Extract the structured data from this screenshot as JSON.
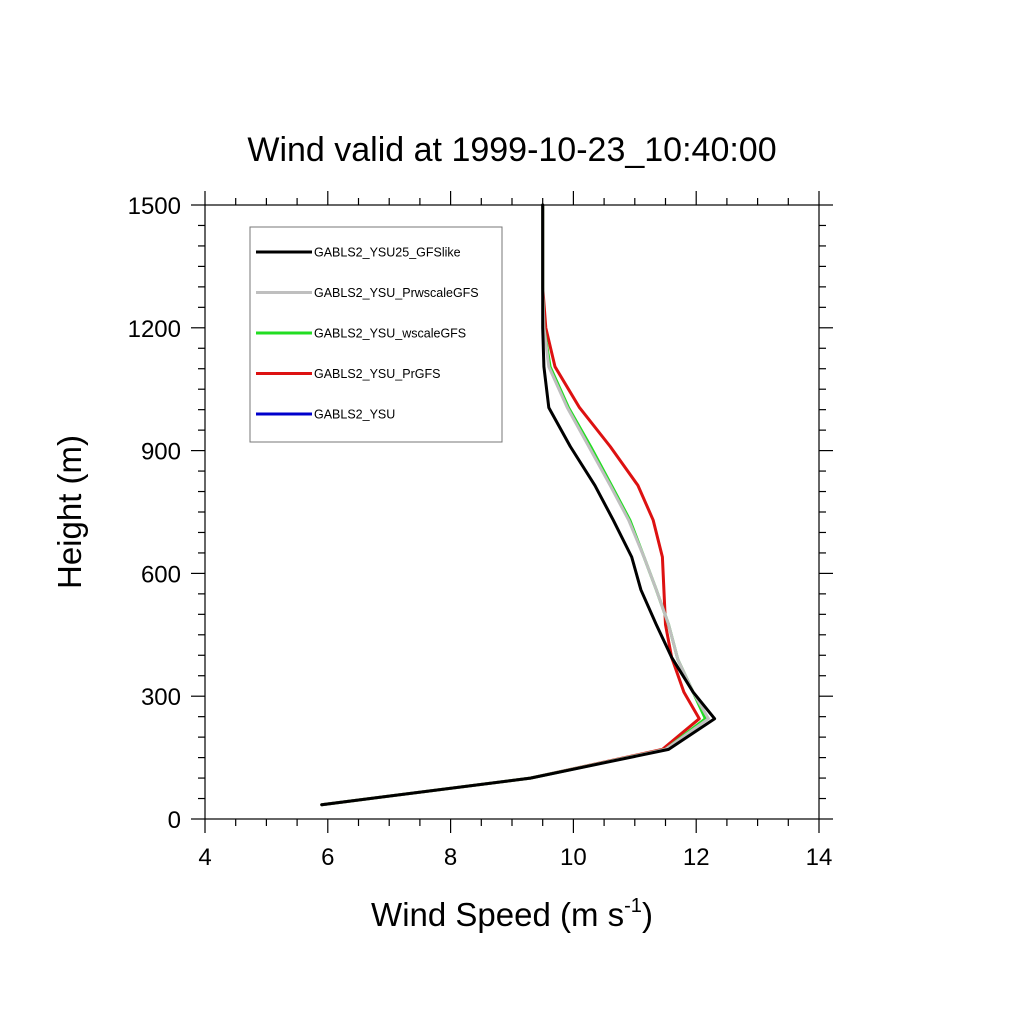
{
  "chart_data": {
    "type": "line",
    "title": "Wind valid at 1999-10-23_10:40:00",
    "xlabel": "Wind Speed (m s",
    "xlabel_sup": "-1",
    "xlabel_end": ")",
    "ylabel": "Height (m)",
    "xlim": [
      4,
      14
    ],
    "ylim": [
      0,
      1500
    ],
    "xticks": [
      4,
      6,
      8,
      10,
      12,
      14
    ],
    "yticks": [
      0,
      300,
      600,
      900,
      1200,
      1500
    ],
    "x_tick_labels": [
      "4",
      "6",
      "8",
      "10",
      "12",
      "14"
    ],
    "y_tick_labels": [
      "0",
      "300",
      "600",
      "900",
      "1200",
      "1500"
    ],
    "grid": false,
    "legend_position": "top-left",
    "series": [
      {
        "name": "GABLS2_YSU25_GFSlike",
        "color": "#000000",
        "points": [
          [
            5.9,
            35
          ],
          [
            9.3,
            100
          ],
          [
            11.55,
            170
          ],
          [
            12.3,
            245
          ],
          [
            11.95,
            310
          ],
          [
            11.6,
            395
          ],
          [
            11.35,
            475
          ],
          [
            11.1,
            560
          ],
          [
            10.95,
            640
          ],
          [
            10.65,
            730
          ],
          [
            10.35,
            815
          ],
          [
            9.95,
            910
          ],
          [
            9.6,
            1005
          ],
          [
            9.52,
            1105
          ],
          [
            9.5,
            1200
          ],
          [
            9.5,
            1300
          ],
          [
            9.5,
            1500
          ]
        ]
      },
      {
        "name": "GABLS2_YSU_PrwscaleGFS",
        "color": "#bfbfbf",
        "points": [
          [
            5.9,
            35
          ],
          [
            9.3,
            100
          ],
          [
            11.5,
            170
          ],
          [
            12.2,
            245
          ],
          [
            11.95,
            310
          ],
          [
            11.7,
            390
          ],
          [
            11.55,
            475
          ],
          [
            11.35,
            560
          ],
          [
            11.15,
            640
          ],
          [
            10.9,
            730
          ],
          [
            10.6,
            815
          ],
          [
            10.25,
            910
          ],
          [
            9.9,
            1005
          ],
          [
            9.6,
            1105
          ],
          [
            9.52,
            1200
          ],
          [
            9.5,
            1300
          ],
          [
            9.5,
            1500
          ]
        ]
      },
      {
        "name": "GABLS2_YSU_wscaleGFS",
        "color": "#22dd22",
        "points": [
          [
            5.9,
            35
          ],
          [
            9.3,
            100
          ],
          [
            11.5,
            170
          ],
          [
            12.15,
            245
          ],
          [
            11.95,
            310
          ],
          [
            11.7,
            390
          ],
          [
            11.55,
            475
          ],
          [
            11.35,
            560
          ],
          [
            11.15,
            640
          ],
          [
            10.92,
            730
          ],
          [
            10.62,
            815
          ],
          [
            10.28,
            910
          ],
          [
            9.92,
            1005
          ],
          [
            9.62,
            1105
          ],
          [
            9.52,
            1200
          ],
          [
            9.5,
            1300
          ],
          [
            9.5,
            1500
          ]
        ]
      },
      {
        "name": "GABLS2_YSU_PrGFS",
        "color": "#dd1111",
        "points": [
          [
            5.9,
            35
          ],
          [
            9.3,
            100
          ],
          [
            11.45,
            170
          ],
          [
            12.05,
            245
          ],
          [
            11.8,
            310
          ],
          [
            11.6,
            395
          ],
          [
            11.5,
            475
          ],
          [
            11.45,
            640
          ],
          [
            11.3,
            730
          ],
          [
            11.05,
            815
          ],
          [
            10.6,
            910
          ],
          [
            10.1,
            1005
          ],
          [
            9.7,
            1105
          ],
          [
            9.55,
            1200
          ],
          [
            9.5,
            1300
          ],
          [
            9.5,
            1500
          ]
        ]
      },
      {
        "name": "GABLS2_YSU",
        "color": "#0000cc",
        "points": []
      }
    ]
  }
}
